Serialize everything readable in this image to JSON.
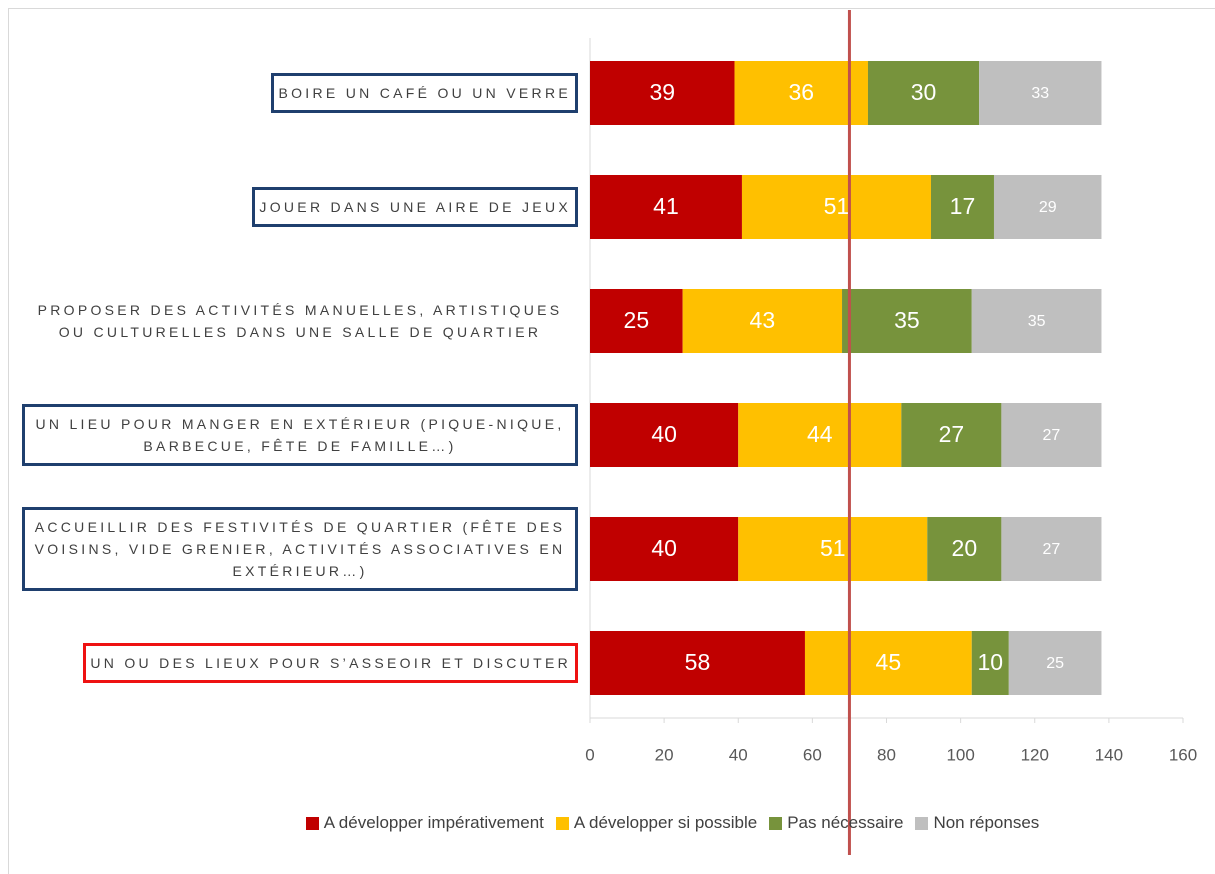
{
  "chart_data": {
    "type": "stacked_bar_horizontal",
    "categories": [
      "BOIRE UN CAFÉ OU UN VERRE",
      "JOUER DANS UNE AIRE DE JEUX",
      "PROPOSER DES ACTIVITÉS MANUELLES, ARTISTIQUES OU CULTURELLES DANS UNE SALLE DE QUARTIER",
      "UN LIEU POUR MANGER EN EXTÉRIEUR (PIQUE-NIQUE, BARBECUE, FÊTE DE FAMILLE…)",
      "ACCUEILLIR DES FESTIVITÉS DE QUARTIER (FÊTE DES VOISINS, VIDE GRENIER, ACTIVITÉS ASSOCIATIVES EN EXTÉRIEUR…)",
      "UN OU DES LIEUX POUR S’ASSEOIR ET DISCUTER"
    ],
    "label_box_colors": [
      "#1f3f6e",
      "#1f3f6e",
      null,
      "#1f3f6e",
      "#1f3f6e",
      "#ee1111"
    ],
    "series": [
      {
        "name": "A développer impérativement",
        "color": "#c00000",
        "values": [
          39,
          41,
          25,
          40,
          40,
          58
        ]
      },
      {
        "name": "A développer si possible",
        "color": "#ffc000",
        "values": [
          36,
          51,
          43,
          44,
          51,
          45
        ]
      },
      {
        "name": "Pas nécessaire",
        "color": "#77933c",
        "values": [
          30,
          17,
          35,
          27,
          20,
          10
        ]
      },
      {
        "name": "Non réponses",
        "color": "#bfbfbf",
        "values": [
          33,
          29,
          35,
          27,
          27,
          25
        ]
      }
    ],
    "xlim": [
      0,
      160
    ],
    "xticks": [
      0,
      20,
      40,
      60,
      80,
      100,
      120,
      140,
      160
    ],
    "reference_line": {
      "value": 70,
      "color": "#c0504d"
    },
    "legend": "bottom"
  }
}
